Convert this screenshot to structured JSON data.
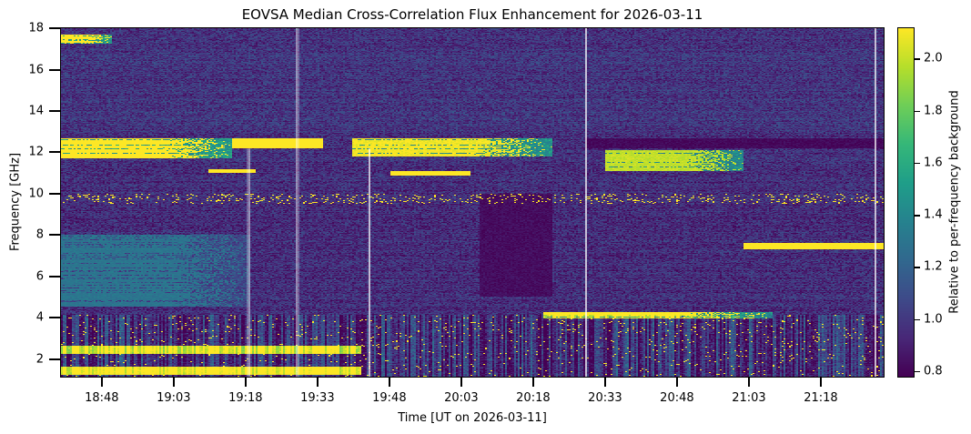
{
  "chart_data": {
    "type": "heatmap",
    "title": "EOVSA Median Cross-Correlation Flux Enhancement for 2026-03-11",
    "xlabel": "Time [UT on 2026-03-11]",
    "ylabel": "Frequency [GHz]",
    "colorbar_label": "Relative to per-frequency background",
    "colormap": "viridis",
    "x_range_minutes_ut": [
      1119.3,
      1291.3
    ],
    "x_ticks": [
      {
        "label": "18:48",
        "minutes": 1128
      },
      {
        "label": "19:03",
        "minutes": 1143
      },
      {
        "label": "19:18",
        "minutes": 1158
      },
      {
        "label": "19:33",
        "minutes": 1173
      },
      {
        "label": "19:48",
        "minutes": 1188
      },
      {
        "label": "20:03",
        "minutes": 1203
      },
      {
        "label": "20:18",
        "minutes": 1218
      },
      {
        "label": "20:33",
        "minutes": 1233
      },
      {
        "label": "20:48",
        "minutes": 1248
      },
      {
        "label": "21:03",
        "minutes": 1263
      },
      {
        "label": "21:18",
        "minutes": 1278
      }
    ],
    "ylim": [
      1.1,
      18.05
    ],
    "y_ticks": [
      2,
      4,
      6,
      8,
      10,
      12,
      14,
      16,
      18
    ],
    "clim": [
      0.775,
      2.12
    ],
    "c_ticks": [
      "0.8",
      "1.0",
      "1.2",
      "1.4",
      "1.6",
      "1.8",
      "2.0"
    ],
    "background_level": 0.95,
    "features": [
      {
        "t": [
          1119.3,
          1130
        ],
        "f": [
          17.3,
          17.75
        ],
        "value": 2.2,
        "fade": true
      },
      {
        "t": [
          1119.3,
          1155
        ],
        "f": [
          11.7,
          12.7
        ],
        "value": 2.2,
        "fade": true
      },
      {
        "t": [
          1155,
          1174
        ],
        "f": [
          12.2,
          12.7
        ],
        "value": 2.2,
        "fade": false
      },
      {
        "t": [
          1150,
          1160
        ],
        "f": [
          11.0,
          11.2
        ],
        "value": 2.2,
        "fade": false
      },
      {
        "t": [
          1180,
          1222
        ],
        "f": [
          11.8,
          12.7
        ],
        "value": 2.1,
        "fade": true
      },
      {
        "t": [
          1188,
          1205
        ],
        "f": [
          10.9,
          11.1
        ],
        "value": 2.2,
        "fade": false
      },
      {
        "t": [
          1233,
          1262
        ],
        "f": [
          11.1,
          12.1
        ],
        "value": 2.0,
        "fade": true
      },
      {
        "t": [
          1229,
          1291.3
        ],
        "f": [
          12.2,
          12.7
        ],
        "value": 0.8,
        "fade": false
      },
      {
        "t": [
          1119.3,
          1159
        ],
        "f": [
          4.5,
          8.0
        ],
        "value": 1.3,
        "fade": true
      },
      {
        "t": [
          1207,
          1222
        ],
        "f": [
          5.0,
          10.0
        ],
        "value": 0.82,
        "fade": false
      },
      {
        "t": [
          1220,
          1268
        ],
        "f": [
          3.95,
          4.25
        ],
        "value": 2.15,
        "fade": true
      },
      {
        "t": [
          1262,
          1291.3
        ],
        "f": [
          7.3,
          7.6
        ],
        "value": 2.15,
        "fade": false
      },
      {
        "t": [
          1119.3,
          1182
        ],
        "f": [
          1.2,
          1.6
        ],
        "value": 2.2,
        "fade": false
      },
      {
        "t": [
          1119.3,
          1182
        ],
        "f": [
          2.2,
          2.6
        ],
        "value": 2.1,
        "fade": false
      }
    ],
    "speckle_band_ghz": [
      9.5,
      10.0
    ],
    "low_freq_striped_band_ghz": [
      1.1,
      4.1
    ],
    "flagged_gaps": [
      {
        "minutes": 1158.4,
        "f": [
          1.1,
          12.2
        ]
      },
      {
        "minutes": 1168.6,
        "f": [
          1.1,
          18.05
        ]
      },
      {
        "minutes": 1183.6,
        "f": [
          1.1,
          12.2
        ]
      },
      {
        "minutes": 1229.0,
        "f": [
          1.1,
          18.05
        ]
      },
      {
        "minutes": 1289.5,
        "f": [
          1.1,
          18.05
        ]
      }
    ]
  }
}
